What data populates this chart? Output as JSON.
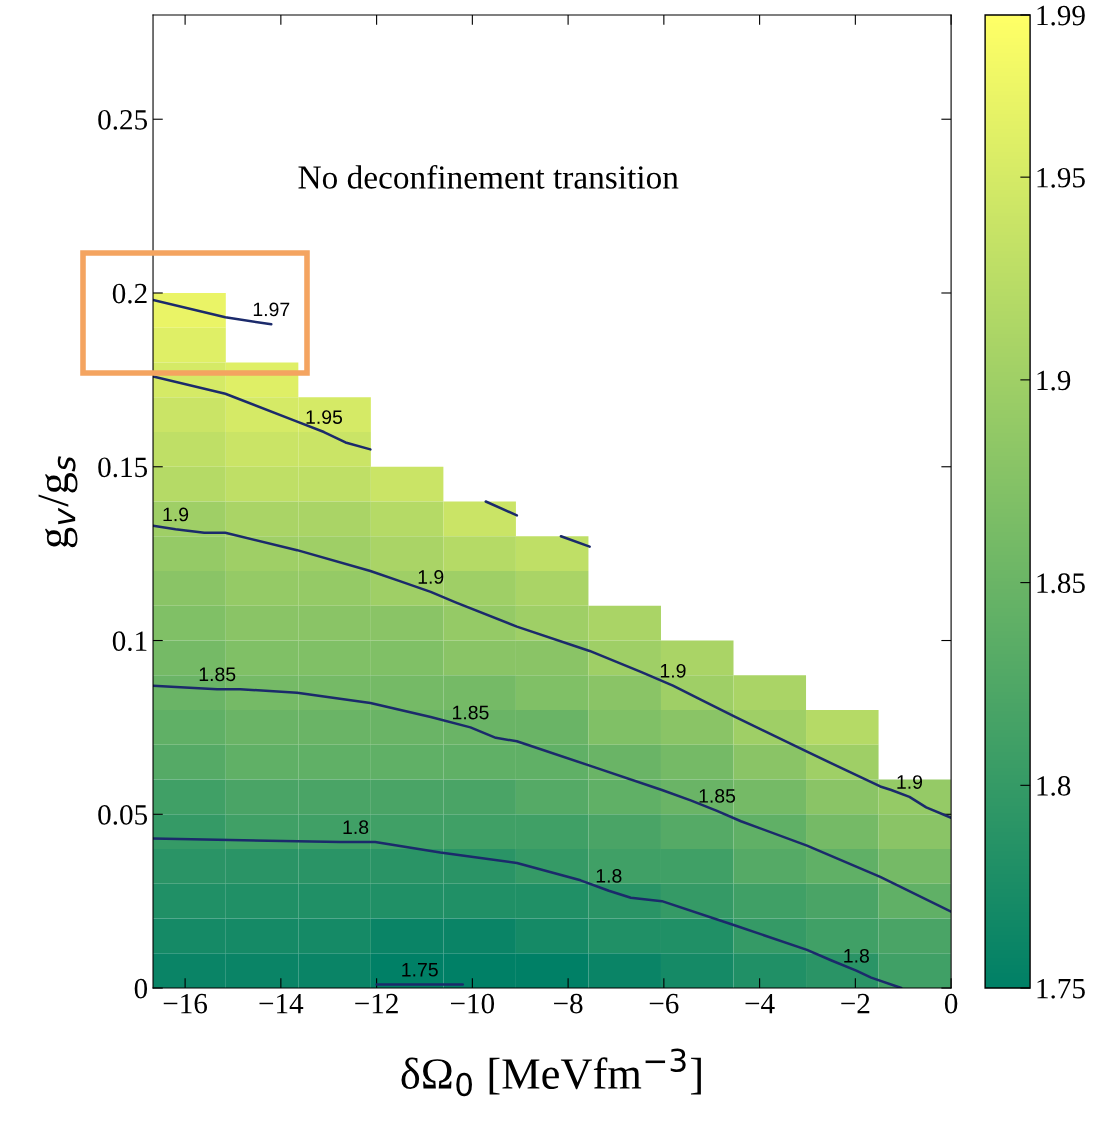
{
  "chart_data": {
    "type": "heatmap",
    "xlabel": "δΩ$_{0}$ [MeVfm$^{−3}$]",
    "ylabel": "g$_{v}$/g$_{s}$",
    "x": [
      -15.91,
      -14.39,
      -12.88,
      -11.36,
      -9.85,
      -8.33,
      -6.82,
      -5.3,
      -3.79,
      -2.27,
      -0.76
    ],
    "y": [
      0.195,
      0.185,
      0.175,
      0.165,
      0.155,
      0.145,
      0.135,
      0.125,
      0.115,
      0.105,
      0.095,
      0.085,
      0.075,
      0.065,
      0.055,
      0.045,
      0.035,
      0.025,
      0.015,
      0.005
    ],
    "cells": [
      [
        1.97,
        null,
        null,
        null,
        null,
        null,
        null,
        null,
        null,
        null,
        null
      ],
      [
        1.96,
        null,
        null,
        null,
        null,
        null,
        null,
        null,
        null,
        null,
        null
      ],
      [
        1.95,
        1.96,
        null,
        null,
        null,
        null,
        null,
        null,
        null,
        null,
        null
      ],
      [
        1.94,
        1.95,
        1.95,
        null,
        null,
        null,
        null,
        null,
        null,
        null,
        null
      ],
      [
        1.93,
        1.94,
        1.94,
        null,
        null,
        null,
        null,
        null,
        null,
        null,
        null
      ],
      [
        1.92,
        1.93,
        1.93,
        1.94,
        null,
        null,
        null,
        null,
        null,
        null,
        null
      ],
      [
        1.9,
        1.91,
        1.91,
        1.92,
        1.94,
        null,
        null,
        null,
        null,
        null,
        null
      ],
      [
        1.89,
        1.9,
        1.9,
        1.91,
        1.92,
        1.93,
        null,
        null,
        null,
        null,
        null
      ],
      [
        1.88,
        1.89,
        1.89,
        1.9,
        1.9,
        1.91,
        null,
        null,
        null,
        null,
        null
      ],
      [
        1.87,
        1.88,
        1.88,
        1.88,
        1.89,
        1.9,
        1.91,
        null,
        null,
        null,
        null
      ],
      [
        1.86,
        1.87,
        1.87,
        1.87,
        1.88,
        1.88,
        1.9,
        1.91,
        null,
        null,
        null
      ],
      [
        1.85,
        1.86,
        1.86,
        1.86,
        1.86,
        1.87,
        1.88,
        1.9,
        1.91,
        null,
        null
      ],
      [
        1.84,
        1.85,
        1.85,
        1.85,
        1.85,
        1.85,
        1.87,
        1.88,
        1.9,
        1.92,
        null
      ],
      [
        1.83,
        1.84,
        1.84,
        1.84,
        1.84,
        1.84,
        1.85,
        1.86,
        1.88,
        1.9,
        null
      ],
      [
        1.81,
        1.82,
        1.82,
        1.82,
        1.82,
        1.83,
        1.84,
        1.85,
        1.86,
        1.88,
        1.89
      ],
      [
        1.8,
        1.81,
        1.81,
        1.81,
        1.81,
        1.81,
        1.82,
        1.83,
        1.84,
        1.86,
        1.88
      ],
      [
        1.79,
        1.79,
        1.79,
        1.79,
        1.79,
        1.8,
        1.81,
        1.81,
        1.83,
        1.84,
        1.86
      ],
      [
        1.78,
        1.78,
        1.78,
        1.78,
        1.78,
        1.78,
        1.79,
        1.8,
        1.81,
        1.82,
        1.84
      ],
      [
        1.77,
        1.77,
        1.77,
        1.76,
        1.76,
        1.77,
        1.78,
        1.78,
        1.8,
        1.81,
        1.82
      ],
      [
        1.76,
        1.76,
        1.76,
        1.75,
        1.75,
        1.75,
        1.76,
        1.77,
        1.78,
        1.79,
        1.81
      ]
    ],
    "xlim": [
      -16.67,
      0
    ],
    "ylim": [
      0,
      0.28
    ],
    "xticks": [
      {
        "value": -16,
        "label": "−16"
      },
      {
        "value": -14,
        "label": "−14"
      },
      {
        "value": -12,
        "label": "−12"
      },
      {
        "value": -10,
        "label": "−10"
      },
      {
        "value": -8,
        "label": "−8"
      },
      {
        "value": -6,
        "label": "−6"
      },
      {
        "value": -4,
        "label": "−4"
      },
      {
        "value": -2,
        "label": "−2"
      },
      0
    ],
    "yticks": [
      0,
      0.05,
      0.1,
      0.15,
      0.2,
      0.25
    ],
    "clim": [
      1.75,
      1.99
    ],
    "cticks": [
      1.75,
      1.8,
      1.85,
      1.9,
      1.95,
      1.99
    ],
    "series": [
      {
        "type": "line",
        "color": "#1b2a6b",
        "x": [
          -16.67,
          -15.16,
          -14.2
        ],
        "values": [
          0.198,
          0.193,
          0.191
        ]
      },
      {
        "type": "line",
        "color": "#1b2a6b",
        "x": [
          -16.67,
          -15.16,
          -13.66,
          -13.1,
          -12.65,
          -12.13,
          -11.0,
          -9.72,
          -9.07,
          -8.6,
          -8.15,
          -7.55
        ],
        "values": [
          0.176,
          0.171,
          0.163,
          0.16,
          0.157,
          0.155,
          null,
          0.14,
          0.136,
          null,
          0.13,
          0.127
        ]
      },
      {
        "type": "line",
        "color": "#1b2a6b",
        "x": [
          -16.67,
          -16.2,
          -15.6,
          -15.16,
          -13.66,
          -12.13,
          -11.5,
          -10.87,
          -10.35,
          -9.07,
          -7.55,
          -6.48,
          -5.81,
          -5.23,
          -4.51,
          -3.01,
          -1.48,
          -1.25,
          -0.87,
          -0.52,
          0
        ],
        "values": [
          0.133,
          0.132,
          0.131,
          0.131,
          0.126,
          0.12,
          0.117,
          0.114,
          0.111,
          0.104,
          0.097,
          0.091,
          0.087,
          0.083,
          0.078,
          0.068,
          0.058,
          0.057,
          0.055,
          0.052,
          0.049
        ]
      },
      {
        "type": "line",
        "color": "#1b2a6b",
        "x": [
          -16.67,
          -15.33,
          -14.85,
          -13.66,
          -12.13,
          -10.87,
          -10.04,
          -9.51,
          -9.07,
          -7.55,
          -6.04,
          -5.44,
          -4.89,
          -4.39,
          -3.01,
          -1.48,
          0
        ],
        "values": [
          0.087,
          0.086,
          0.086,
          0.085,
          0.082,
          0.078,
          0.075,
          0.072,
          0.071,
          0.064,
          0.057,
          0.054,
          0.051,
          0.048,
          0.041,
          0.032,
          0.022
        ]
      },
      {
        "type": "line",
        "color": "#1b2a6b",
        "x": [
          -16.67,
          -12.76,
          -12.44,
          -12.03,
          -10.67,
          -9.07,
          -7.74,
          -7.15,
          -6.69,
          -6.04,
          -4.51,
          -3.01,
          -2.51,
          -1.98,
          -1.67,
          -1.04
        ],
        "values": [
          0.043,
          0.042,
          0.042,
          0.042,
          0.039,
          0.036,
          0.031,
          0.028,
          0.026,
          0.025,
          0.018,
          0.011,
          0.008,
          0.005,
          0.003,
          0
        ]
      },
      {
        "type": "line",
        "color": "#1b2a6b",
        "x": [
          -12.0,
          -11.7,
          -11.1,
          -10.5,
          -10.2
        ],
        "values": [
          0.001,
          0.001,
          0.001,
          0.001,
          0.001
        ]
      }
    ],
    "annotations": [
      "No deconfinement transition",
      {
        "text": "1.97",
        "x": -14.2,
        "y": 0.191
      },
      {
        "text": "1.95",
        "x": -13.1,
        "y": 0.16
      },
      {
        "text": "1.9",
        "x": -16.2,
        "y": 0.132
      },
      {
        "text": "1.9",
        "x": -10.87,
        "y": 0.114
      },
      {
        "text": "1.9",
        "x": -5.81,
        "y": 0.087
      },
      {
        "text": "1.9",
        "x": -0.87,
        "y": 0.055
      },
      {
        "text": "1.85",
        "x": -15.33,
        "y": 0.086
      },
      {
        "text": "1.85",
        "x": -10.04,
        "y": 0.075
      },
      {
        "text": "1.85",
        "x": -4.89,
        "y": 0.051
      },
      {
        "text": "1.8",
        "x": -12.44,
        "y": 0.042
      },
      {
        "text": "1.8",
        "x": -7.15,
        "y": 0.028
      },
      {
        "text": "1.8",
        "x": -1.98,
        "y": 0.005
      },
      {
        "text": "1.75",
        "x": -11.1,
        "y": 0.001
      }
    ],
    "grid": false
  }
}
